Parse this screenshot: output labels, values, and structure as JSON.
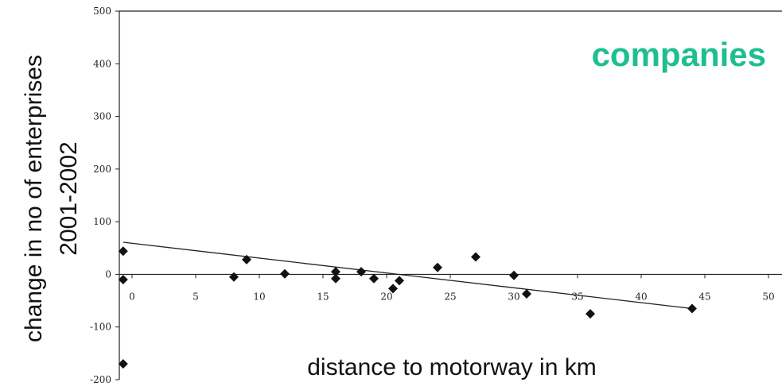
{
  "chart_data": {
    "type": "scatter",
    "title": "",
    "annotation": "companies",
    "xlabel": "distance to motorway in km",
    "ylabel_lines": [
      "change in no of enterprises",
      "2001-2002"
    ],
    "xlim": [
      -0.7,
      50
    ],
    "ylim": [
      -200,
      500
    ],
    "xticks": [
      0,
      5,
      10,
      15,
      20,
      25,
      30,
      35,
      40,
      45,
      50
    ],
    "yticks": [
      -200,
      -100,
      0,
      100,
      200,
      300,
      400,
      500
    ],
    "grid": false,
    "legend": "none",
    "colors": {
      "points": "#111111",
      "trend": "#222222",
      "annotation": "#1dbf8e",
      "axis": "#222222"
    },
    "points": [
      {
        "x": -0.7,
        "y": 44
      },
      {
        "x": -0.7,
        "y": -10
      },
      {
        "x": -0.7,
        "y": -170
      },
      {
        "x": 8,
        "y": -5
      },
      {
        "x": 9,
        "y": 28
      },
      {
        "x": 12,
        "y": 1
      },
      {
        "x": 16,
        "y": 5
      },
      {
        "x": 16,
        "y": -8
      },
      {
        "x": 18,
        "y": 5
      },
      {
        "x": 19,
        "y": -8
      },
      {
        "x": 20.5,
        "y": -27
      },
      {
        "x": 21,
        "y": -12
      },
      {
        "x": 24,
        "y": 13
      },
      {
        "x": 27,
        "y": 33
      },
      {
        "x": 30,
        "y": -2
      },
      {
        "x": 31,
        "y": -37
      },
      {
        "x": 36,
        "y": -75
      },
      {
        "x": 44,
        "y": -65
      }
    ],
    "trendline": {
      "from": {
        "x": -0.7,
        "y": 61
      },
      "to": {
        "x": 44,
        "y": -65
      }
    }
  }
}
